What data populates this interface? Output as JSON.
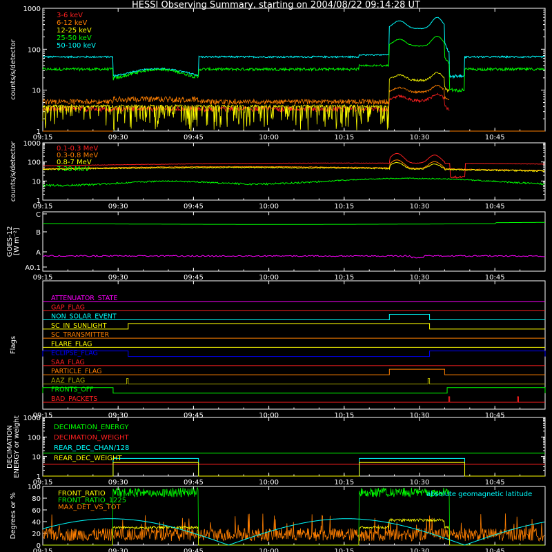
{
  "title": "HESSI Observing Summary, starting on 2004/08/22 09:14:28 UT",
  "time_axis": {
    "start": "09:15",
    "end": "10:55",
    "ticks": [
      "09:15",
      "09:30",
      "09:45",
      "10:00",
      "10:15",
      "10:30",
      "10:45"
    ]
  },
  "colors": {
    "white": "#ffffff",
    "red": "#ff2020",
    "orange": "#ff7f00",
    "yellow": "#ffff00",
    "green": "#00ff00",
    "cyan": "#00ffff",
    "magenta": "#ff00ff",
    "blue": "#0000ff",
    "dkyellow": "#aaaa00",
    "salmon": "#ff5050"
  },
  "chart_data": [
    {
      "id": "front",
      "type": "line",
      "ylabel": "counts/s/detector",
      "yscale": "log",
      "ylim": [
        1,
        1000
      ],
      "yticks": [
        "1",
        "10",
        "100",
        "1000"
      ],
      "series": [
        {
          "name": "3-6 keV",
          "color": "red"
        },
        {
          "name": "6-12 keV",
          "color": "orange"
        },
        {
          "name": "12-25 keV",
          "color": "yellow"
        },
        {
          "name": "25-50 keV",
          "color": "green"
        },
        {
          "name": "50-100 keV",
          "color": "cyan"
        }
      ]
    },
    {
      "id": "rear",
      "type": "line",
      "ylabel": "counts/s/detector",
      "yscale": "log",
      "ylim": [
        1,
        1000
      ],
      "yticks": [
        "1",
        "10",
        "100",
        "1000"
      ],
      "series": [
        {
          "name": "0.1-0.3 MeV",
          "color": "red"
        },
        {
          "name": "0.3-0.8 MeV",
          "color": "orange"
        },
        {
          "name": "0.8-7 MeV",
          "color": "yellow"
        },
        {
          "name": "7-20 MeV",
          "color": "green"
        }
      ]
    },
    {
      "id": "goes",
      "type": "line",
      "ylabel": "GOES-12",
      "ylabel2": "[W m⁻²]",
      "yticks": [
        "A0.1",
        "A",
        "B",
        "C"
      ],
      "series": [
        {
          "color": "green",
          "level": "B-C (~1.6)"
        },
        {
          "color": "magenta",
          "level": "A (~0.3)"
        }
      ]
    },
    {
      "id": "flags",
      "type": "line",
      "ylabel": "Flags",
      "series": [
        {
          "name": "ATTENUATOR_STATE",
          "color": "magenta",
          "on": []
        },
        {
          "name": "GAP_FLAG",
          "color": "red",
          "on": []
        },
        {
          "name": "NON_SOLAR_EVENT",
          "color": "cyan",
          "on": [
            [
              "10:24",
              "10:32"
            ]
          ]
        },
        {
          "name": "SC_IN_SUNLIGHT",
          "color": "yellow",
          "on": [
            [
              "09:32",
              "10:32"
            ]
          ]
        },
        {
          "name": "SC_TRANSMITTER",
          "color": "orange",
          "on": []
        },
        {
          "name": "FLARE_FLAG",
          "color": "yellow",
          "on": []
        },
        {
          "name": "ECLIPSE_FLAG",
          "color": "blue",
          "on": [
            [
              "09:15",
              "09:32"
            ],
            [
              "10:32",
              "10:55"
            ]
          ]
        },
        {
          "name": "SAA_FLAG",
          "color": "red",
          "on": []
        },
        {
          "name": "PARTICLE_FLAG",
          "color": "orange",
          "on": [
            [
              "10:24",
              "10:35"
            ]
          ]
        },
        {
          "name": "AAZ_FLAG",
          "color": "dkyellow",
          "on": [
            [
              "09:31.7",
              "09:32"
            ],
            [
              "10:31.7",
              "10:32"
            ]
          ]
        },
        {
          "name": "FRONTS_OFF",
          "color": "green",
          "on": [
            [
              "09:15",
              "09:29"
            ],
            [
              "10:35.5",
              "10:55"
            ]
          ]
        },
        {
          "name": "BAD_PACKETS",
          "color": "red",
          "on": [
            [
              "10:35.8",
              "10:36"
            ],
            [
              "10:49.5",
              "10:49.7"
            ]
          ]
        }
      ]
    },
    {
      "id": "decim",
      "type": "line",
      "ylabel": "DECIMATION",
      "ylabel2": "ENERGY or weight",
      "yscale": "log",
      "ylim": [
        1,
        1000
      ],
      "yticks": [
        "1",
        "10",
        "100",
        "1000"
      ],
      "series": [
        {
          "name": "DECIMATION_ENERGY",
          "color": "green",
          "value": 15
        },
        {
          "name": "DECIMATION_WEIGHT",
          "color": "red",
          "value": 4
        },
        {
          "name": "REAR_DEC_CHAN/128",
          "color": "cyan",
          "value": 8,
          "on": [
            [
              "09:29",
              "09:46"
            ],
            [
              "10:18",
              "10:39"
            ]
          ]
        },
        {
          "name": "REAR_DEC_WEIGHT",
          "color": "yellow",
          "value": 5,
          "on": [
            [
              "09:29",
              "09:46"
            ],
            [
              "10:18",
              "10:39"
            ]
          ]
        }
      ]
    },
    {
      "id": "ratio",
      "type": "line",
      "ylabel": "Degrees or %",
      "ylim": [
        0,
        100
      ],
      "yticks": [
        "0",
        "20",
        "40",
        "60",
        "80",
        "100"
      ],
      "annotation": "absolute geomagnetic latitude",
      "series": [
        {
          "name": "FRONT_RATIO",
          "color": "yellow"
        },
        {
          "name": "FRONT_RATIO_1225",
          "color": "green"
        },
        {
          "name": "MAX_DET_VS_TOT",
          "color": "orange"
        }
      ]
    }
  ]
}
